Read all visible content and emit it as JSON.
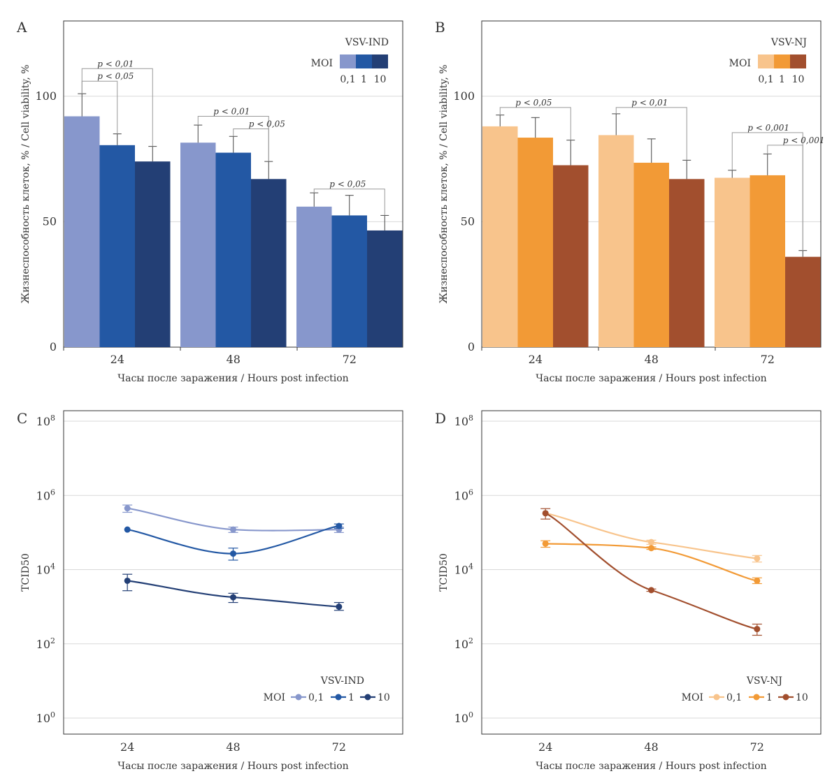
{
  "chart_data": [
    {
      "panel": "A",
      "type": "bar",
      "xlabel": "Часы после заражения / Hours post infection",
      "ylabel": "Жизнеспособность клеток, % / Cell viability, %",
      "ylim": [
        0,
        130
      ],
      "yticks": [
        "0",
        "50",
        "100"
      ],
      "categories": [
        "24",
        "48",
        "72"
      ],
      "legend": {
        "title": "VSV-IND",
        "moi_label": "MOI",
        "placement": "top-right"
      },
      "series": [
        {
          "name": "0,1",
          "color": "#8797cc",
          "values": [
            92,
            81.5,
            56
          ],
          "errors": [
            9,
            7,
            5.5
          ]
        },
        {
          "name": "1",
          "color": "#2358a4",
          "values": [
            80.5,
            77.5,
            52.5
          ],
          "errors": [
            4.5,
            6.5,
            8
          ]
        },
        {
          "name": "10",
          "color": "#233f75",
          "values": [
            74,
            67,
            46.5
          ],
          "errors": [
            6,
            7,
            6
          ]
        }
      ],
      "annotations": [
        {
          "text": "p < 0,01",
          "category": 0,
          "from": 0,
          "to": 2,
          "level": 111
        },
        {
          "text": "p < 0,05",
          "category": 0,
          "from": 0,
          "to": 1,
          "level": 106
        },
        {
          "text": "p < 0,01",
          "category": 1,
          "from": 0,
          "to": 2,
          "level": 92
        },
        {
          "text": "p < 0,05",
          "category": 1,
          "from": 1,
          "to": 2,
          "level": 87
        },
        {
          "text": "p < 0,05",
          "category": 2,
          "from": 0,
          "to": 2,
          "level": 63
        }
      ]
    },
    {
      "panel": "B",
      "type": "bar",
      "xlabel": "Часы после заражения / Hours post infection",
      "ylabel": "Жизнеспособность клеток, % / Cell viability, %",
      "ylim": [
        0,
        130
      ],
      "yticks": [
        "0",
        "50",
        "100"
      ],
      "categories": [
        "24",
        "48",
        "72"
      ],
      "legend": {
        "title": "VSV-NJ",
        "moi_label": "MOI",
        "placement": "top-right"
      },
      "series": [
        {
          "name": "0,1",
          "color": "#f8c48c",
          "values": [
            88,
            84.5,
            67.5
          ],
          "errors": [
            4.5,
            8.5,
            3
          ]
        },
        {
          "name": "1",
          "color": "#f29a36",
          "values": [
            83.5,
            73.5,
            68.5
          ],
          "errors": [
            8,
            9.5,
            8.5
          ]
        },
        {
          "name": "10",
          "color": "#a24f2e",
          "values": [
            72.5,
            67,
            36
          ],
          "errors": [
            10,
            7.5,
            2.5
          ]
        }
      ],
      "annotations": [
        {
          "text": "p < 0,05",
          "category": 0,
          "from": 0,
          "to": 2,
          "level": 95.5
        },
        {
          "text": "p < 0,01",
          "category": 1,
          "from": 0,
          "to": 2,
          "level": 95.5
        },
        {
          "text": "p < 0,001",
          "category": 2,
          "from": 0,
          "to": 2,
          "level": 85.5
        },
        {
          "text": "p < 0,001",
          "category": 2,
          "from": 1,
          "to": 2,
          "level": 80.5
        }
      ]
    },
    {
      "panel": "C",
      "type": "line",
      "scale": "log",
      "xlabel": "Часы после заражения / Hours post infection",
      "ylabel": "TCID50",
      "yrange_exp": [
        0,
        8
      ],
      "yticks_base": "10",
      "yticks_exp": [
        "0",
        "2",
        "4",
        "6",
        "8"
      ],
      "x": [
        "24",
        "48",
        "72"
      ],
      "legend": {
        "title": "VSV-IND",
        "moi_label": "MOI",
        "placement": "bottom-right"
      },
      "series": [
        {
          "name": "0,1",
          "color": "#8797cc",
          "values": [
            450000,
            120000,
            120000
          ],
          "err_lo": [
            350000,
            100000,
            100000
          ],
          "err_hi": [
            550000,
            140000,
            140000
          ]
        },
        {
          "name": "1",
          "color": "#2358a4",
          "values": [
            120000,
            27000,
            150000
          ],
          "err_lo": [
            120000,
            18000,
            130000
          ],
          "err_hi": [
            120000,
            38000,
            170000
          ]
        },
        {
          "name": "10",
          "color": "#233f75",
          "values": [
            5000,
            1800,
            1000
          ],
          "err_lo": [
            2700,
            1300,
            800
          ],
          "err_hi": [
            7500,
            2300,
            1300
          ]
        }
      ]
    },
    {
      "panel": "D",
      "type": "line",
      "scale": "log",
      "xlabel": "Часы после заражения / Hours post infection",
      "ylabel": "TCID50",
      "yrange_exp": [
        0,
        8
      ],
      "yticks_base": "10",
      "yticks_exp": [
        "0",
        "2",
        "4",
        "6",
        "8"
      ],
      "x": [
        "24",
        "48",
        "72"
      ],
      "legend": {
        "title": "VSV-NJ",
        "moi_label": "MOI",
        "placement": "bottom-right"
      },
      "series": [
        {
          "name": "0,1",
          "color": "#f8c48c",
          "values": [
            330000,
            55000,
            20000
          ],
          "err_lo": [
            330000,
            48000,
            16000
          ],
          "err_hi": [
            330000,
            62000,
            24000
          ]
        },
        {
          "name": "1",
          "color": "#f29a36",
          "values": [
            50000,
            38000,
            5000
          ],
          "err_lo": [
            40000,
            35000,
            4200
          ],
          "err_hi": [
            60000,
            41000,
            6000
          ]
        },
        {
          "name": "10",
          "color": "#a24f2e",
          "values": [
            330000,
            2800,
            250
          ],
          "err_lo": [
            230000,
            2600,
            170
          ],
          "err_hi": [
            440000,
            3000,
            340
          ]
        }
      ]
    }
  ]
}
